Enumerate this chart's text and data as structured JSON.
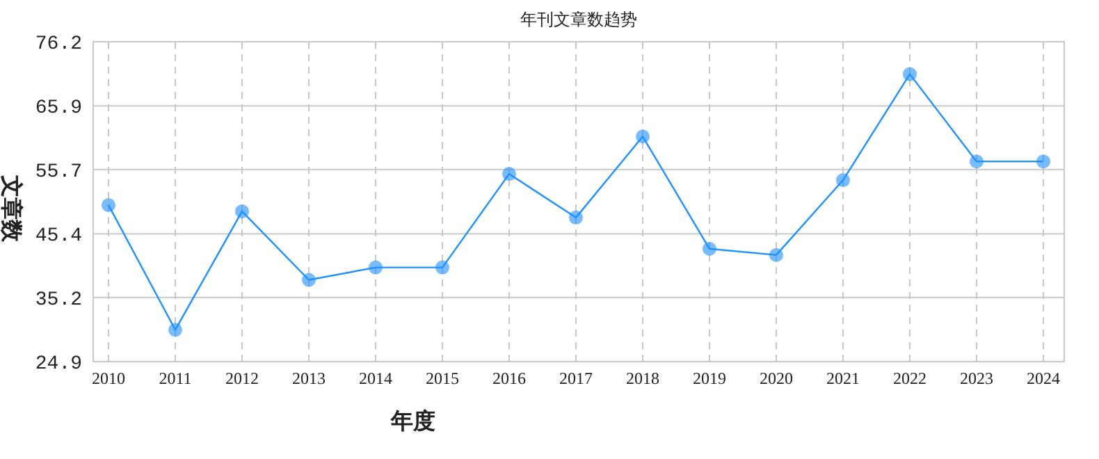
{
  "chart_data": {
    "type": "line",
    "title": "年刊文章数趋势",
    "xlabel": "年度",
    "ylabel": "文章数",
    "categories": [
      "2010",
      "2011",
      "2012",
      "2013",
      "2014",
      "2015",
      "2016",
      "2017",
      "2018",
      "2019",
      "2020",
      "2021",
      "2022",
      "2023",
      "2024"
    ],
    "series": [
      {
        "color": "#1e90ff",
        "values": [
          50,
          30,
          49,
          38,
          40,
          40,
          55,
          48,
          61,
          43,
          42,
          54,
          71,
          57,
          57
        ]
      }
    ],
    "ylim": [
      24.9,
      76.2
    ],
    "yticks": [
      24.9,
      35.2,
      45.4,
      55.7,
      65.9,
      76.2
    ],
    "grid": true,
    "marker": "circle",
    "line_style": "solid"
  }
}
